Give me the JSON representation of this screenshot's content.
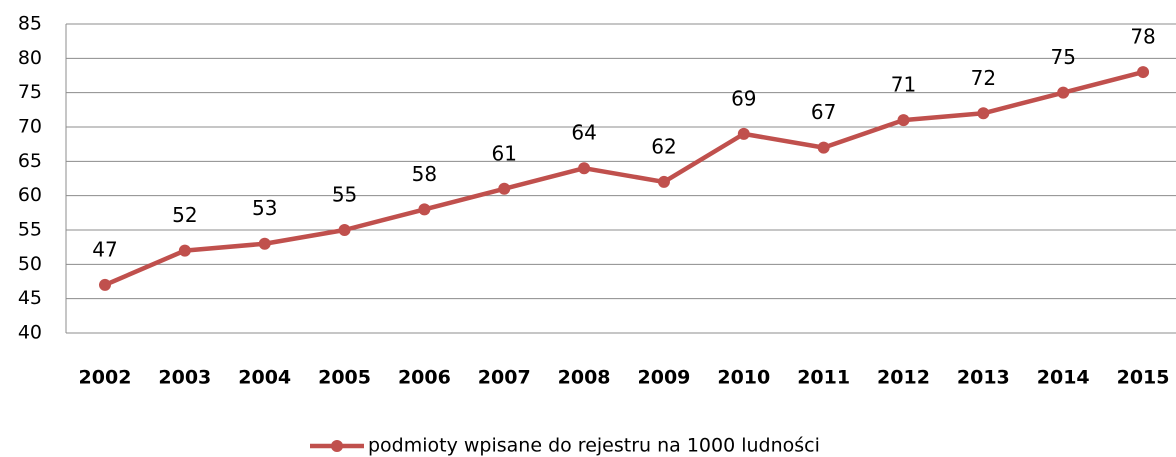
{
  "chart_data": {
    "type": "line",
    "categories": [
      "2002",
      "2003",
      "2004",
      "2005",
      "2006",
      "2007",
      "2008",
      "2009",
      "2010",
      "2011",
      "2012",
      "2013",
      "2014",
      "2015"
    ],
    "series": [
      {
        "name": "podmioty wpisane do rejestru na 1000 ludności",
        "color": "#c0504d",
        "values": [
          47,
          52,
          53,
          55,
          58,
          61,
          64,
          62,
          69,
          67,
          71,
          72,
          75,
          78
        ]
      }
    ],
    "ylim": [
      40,
      85
    ],
    "yticks": [
      40,
      45,
      50,
      55,
      60,
      65,
      70,
      75,
      80,
      85
    ],
    "grid": true,
    "legend": "bottom"
  }
}
